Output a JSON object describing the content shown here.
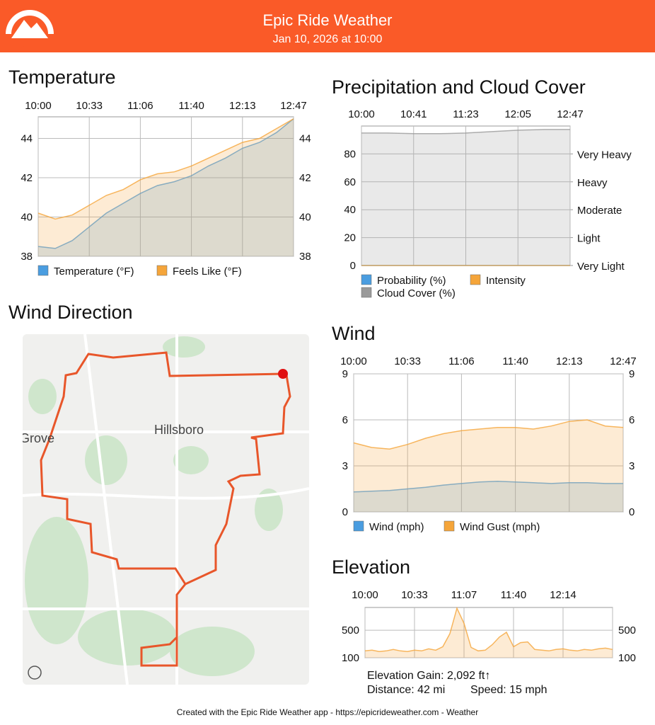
{
  "header": {
    "title": "Epic Ride Weather",
    "subtitle": "Jan 10, 2026 at 10:00"
  },
  "chart_data": [
    {
      "type": "area",
      "title": "Temperature",
      "xticks": [
        "10:00",
        "10:33",
        "11:06",
        "11:40",
        "12:13",
        "12:47"
      ],
      "ylim": [
        38,
        45.1
      ],
      "yticks": [
        38,
        40,
        42,
        44
      ],
      "grid": true,
      "series": [
        {
          "name": "Temperature (°F)",
          "color": "#4a9de0",
          "values": [
            38.5,
            38.4,
            38.8,
            39.5,
            40.2,
            40.7,
            41.2,
            41.6,
            41.8,
            42.1,
            42.6,
            43.0,
            43.5,
            43.8,
            44.3,
            45.0
          ]
        },
        {
          "name": "Feels Like (°F)",
          "color": "#f5a53a",
          "values": [
            40.2,
            39.9,
            40.1,
            40.6,
            41.1,
            41.4,
            41.9,
            42.2,
            42.3,
            42.6,
            43.0,
            43.4,
            43.8,
            44.0,
            44.5,
            45.0
          ]
        }
      ]
    },
    {
      "type": "area",
      "title": "Precipitation and Cloud Cover",
      "xticks": [
        "10:00",
        "10:41",
        "11:23",
        "12:05",
        "12:47"
      ],
      "ylim": [
        0,
        100
      ],
      "yticks": [
        0,
        20,
        40,
        60,
        80
      ],
      "y2lim": [
        0,
        100
      ],
      "y2ticks": [
        {
          "value": 0,
          "label": "Very Light"
        },
        {
          "value": 20,
          "label": "Light"
        },
        {
          "value": 40,
          "label": "Moderate"
        },
        {
          "value": 60,
          "label": "Heavy"
        },
        {
          "value": 80,
          "label": "Very Heavy"
        }
      ],
      "grid": true,
      "series": [
        {
          "name": "Probability (%)",
          "color": "#4a9de0",
          "values": [
            0,
            0,
            0,
            0,
            0,
            0,
            0,
            0,
            0
          ]
        },
        {
          "name": "Intensity",
          "color": "#f5a53a",
          "axis": "y2",
          "values": [
            0,
            0,
            0,
            0,
            0,
            0,
            0,
            0,
            0
          ]
        },
        {
          "name": "Cloud Cover (%)",
          "color": "#9a9a9a",
          "values": [
            95,
            95,
            94.5,
            94.5,
            95,
            96,
            97,
            97.5,
            97.5
          ]
        }
      ]
    },
    {
      "type": "area",
      "title": "Wind",
      "xticks": [
        "10:00",
        "10:33",
        "11:06",
        "11:40",
        "12:13",
        "12:47"
      ],
      "ylim": [
        0,
        9
      ],
      "yticks": [
        0,
        3,
        6,
        9
      ],
      "grid": true,
      "series": [
        {
          "name": "Wind (mph)",
          "color": "#4a9de0",
          "values": [
            1.3,
            1.35,
            1.4,
            1.5,
            1.6,
            1.75,
            1.85,
            1.95,
            2.0,
            1.95,
            1.9,
            1.85,
            1.9,
            1.9,
            1.85,
            1.85
          ]
        },
        {
          "name": "Wind Gust (mph)",
          "color": "#f5a53a",
          "values": [
            4.5,
            4.2,
            4.1,
            4.4,
            4.8,
            5.1,
            5.3,
            5.4,
            5.5,
            5.5,
            5.4,
            5.6,
            5.9,
            6.0,
            5.6,
            5.5
          ]
        }
      ]
    },
    {
      "type": "area",
      "title": "Elevation",
      "xticks": [
        "10:00",
        "10:33",
        "11:07",
        "11:40",
        "12:14",
        null
      ],
      "ylim": [
        100,
        830
      ],
      "yticks": [
        100,
        500
      ],
      "grid": true,
      "color": "#f5a53a",
      "values": [
        200,
        210,
        190,
        200,
        220,
        200,
        190,
        210,
        200,
        230,
        210,
        260,
        450,
        820,
        600,
        250,
        200,
        210,
        290,
        400,
        470,
        260,
        320,
        330,
        220,
        210,
        200,
        220,
        230,
        210,
        200,
        220,
        210,
        230,
        240,
        220
      ]
    }
  ],
  "map": {
    "title": "Wind Direction",
    "labels": [
      "Hillsboro",
      "Grove"
    ]
  },
  "stats": {
    "gain": "Elevation Gain: 2,092 ft↑",
    "distance": "Distance: 42 mi",
    "speed": "Speed: 15 mph"
  },
  "footer": "Created with the Epic Ride Weather app - https://epicrideweather.com - Weather"
}
